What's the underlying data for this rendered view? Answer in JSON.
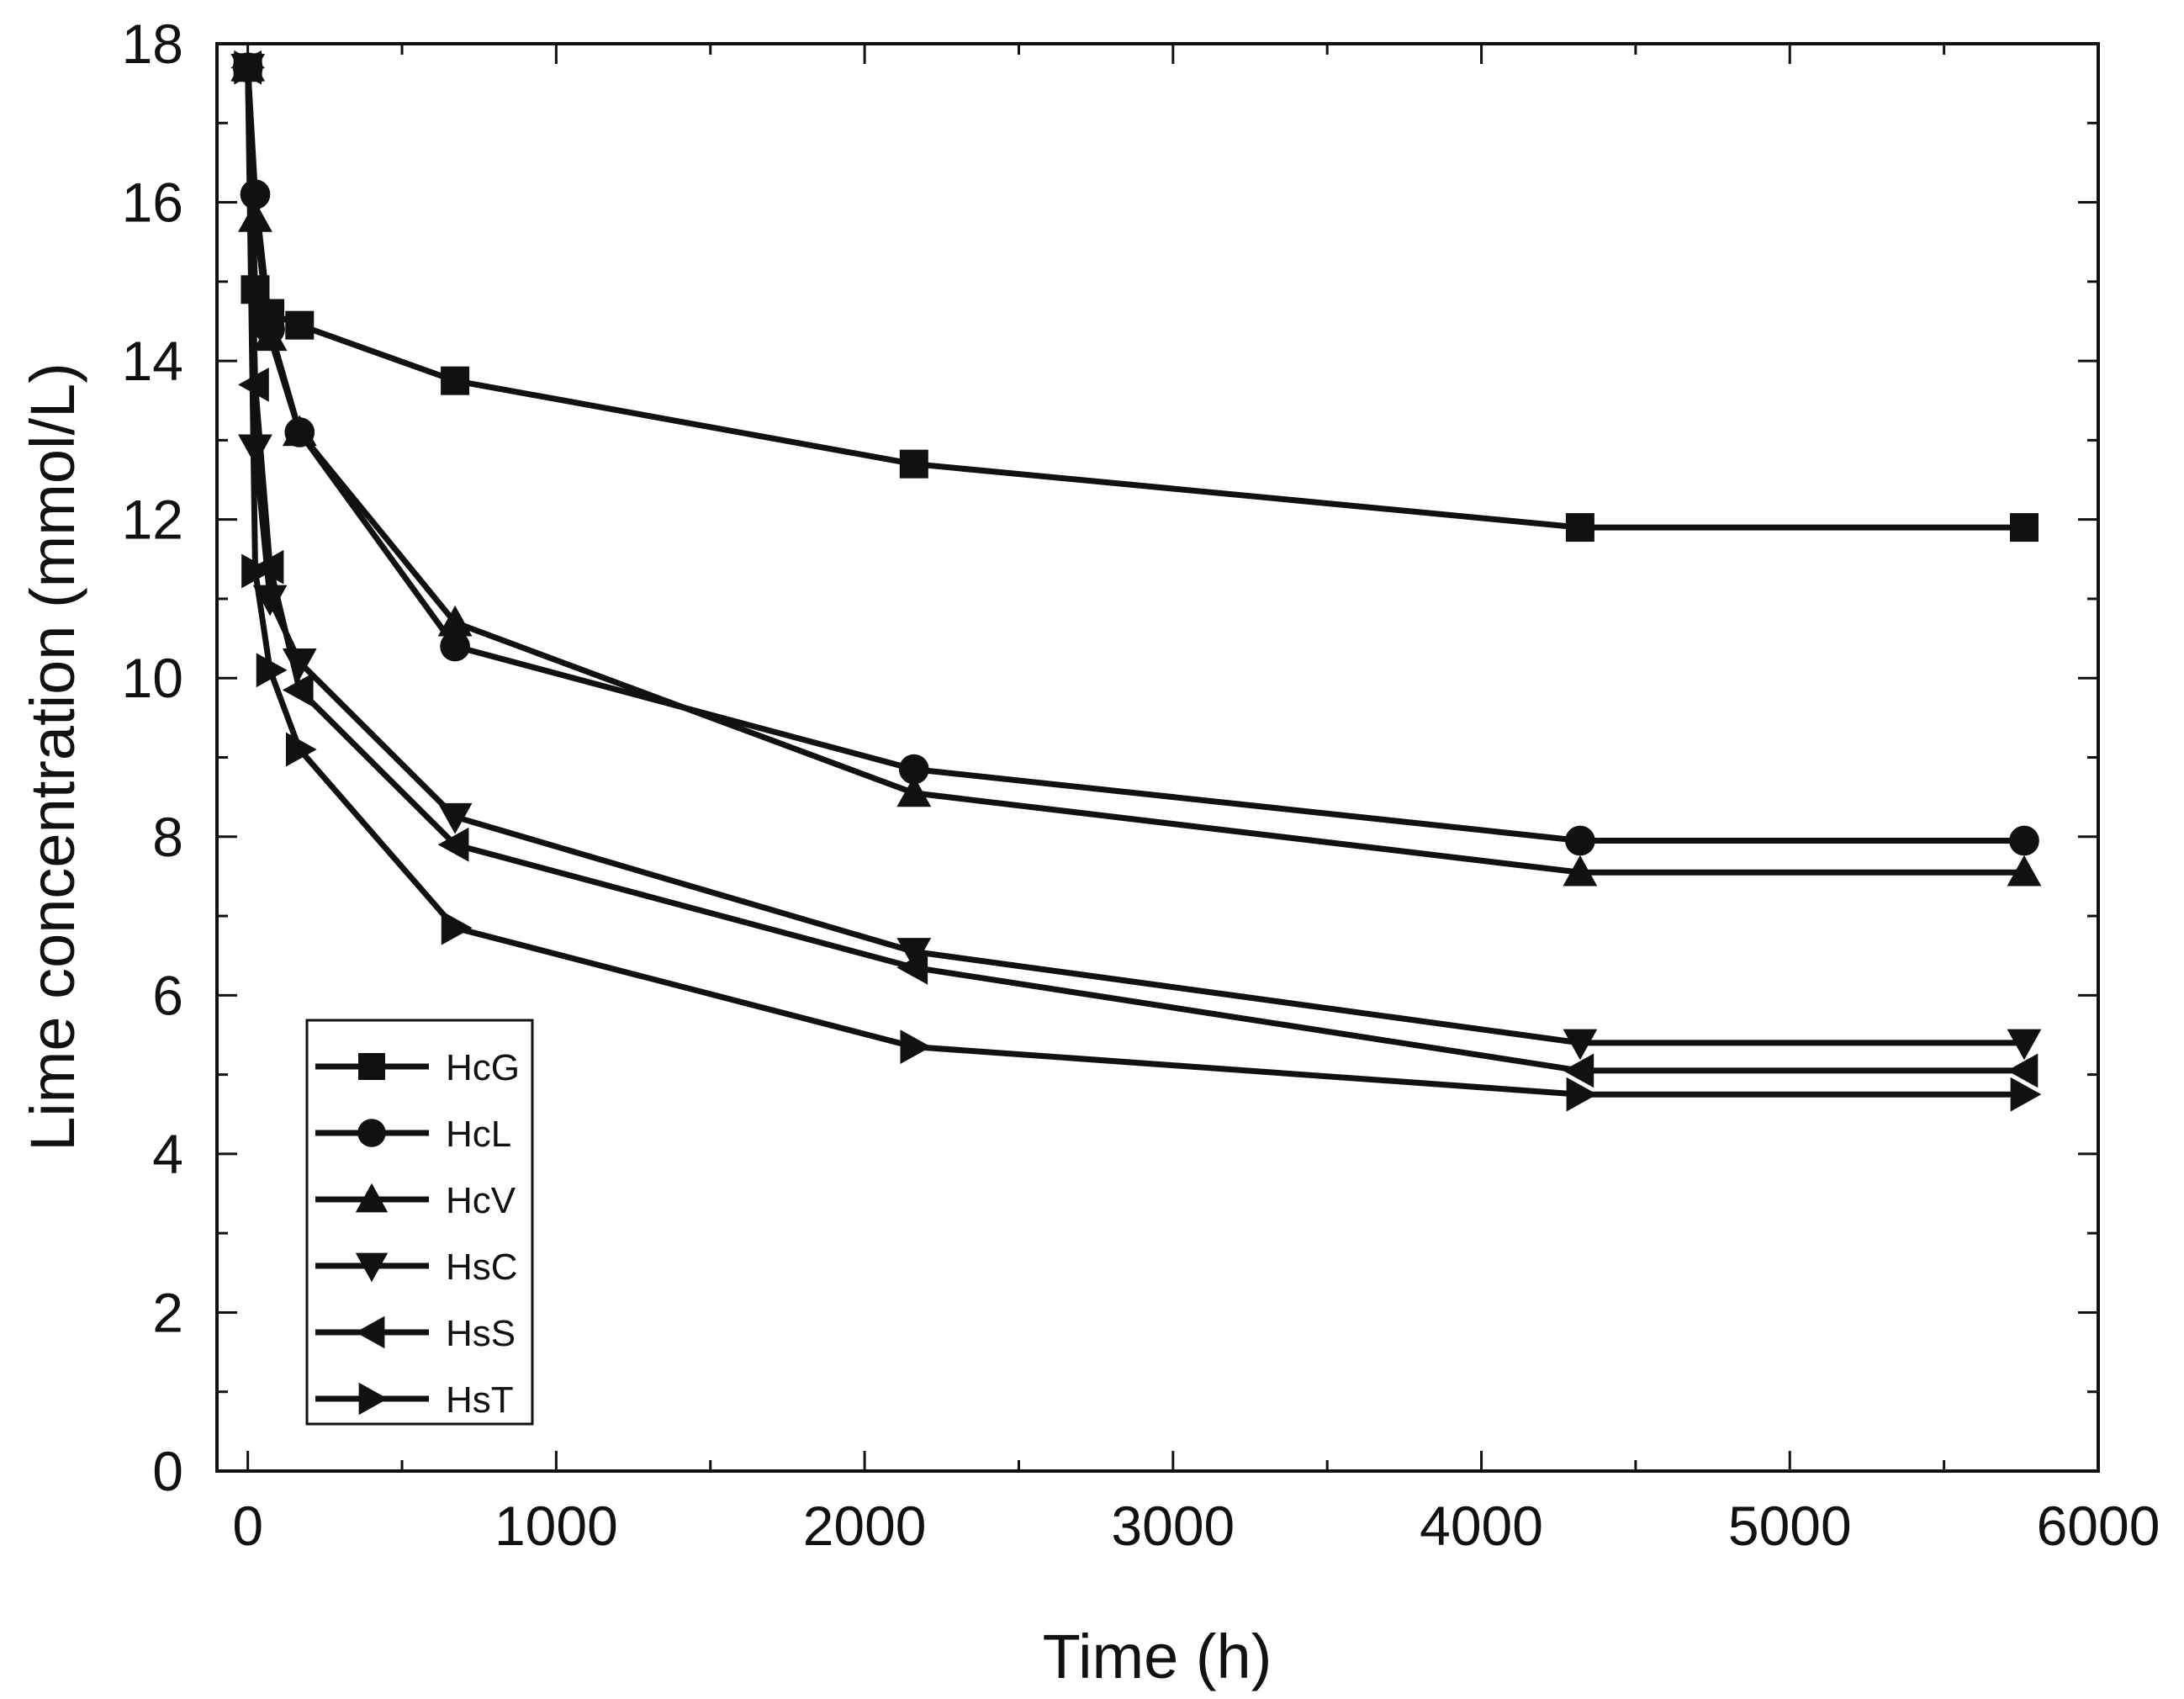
{
  "chart_data": {
    "type": "line",
    "title": "",
    "xlabel": "Time (h)",
    "ylabel": "Lime concentration (mmol/L)",
    "xlim": [
      -100,
      6000
    ],
    "ylim": [
      0,
      18
    ],
    "xticks": [
      0,
      1000,
      2000,
      3000,
      4000,
      5000,
      6000
    ],
    "xtick_labels": [
      "0",
      "1000",
      "2000",
      "3000",
      "4000",
      "5000",
      "6000"
    ],
    "yticks": [
      0,
      2,
      4,
      6,
      8,
      10,
      12,
      14,
      16,
      18
    ],
    "ytick_labels": [
      "0",
      "2",
      "4",
      "6",
      "8",
      "10",
      "12",
      "14",
      "16",
      "18"
    ],
    "legend_position": "bottom-left",
    "grid": false,
    "series": [
      {
        "name": "HcG",
        "marker": "square",
        "x": [
          0,
          24,
          72,
          168,
          672,
          2160,
          4320,
          5760
        ],
        "y": [
          17.7,
          14.9,
          14.6,
          14.45,
          13.75,
          12.7,
          11.9,
          11.9
        ]
      },
      {
        "name": "HcL",
        "marker": "circle",
        "x": [
          0,
          24,
          72,
          168,
          672,
          2160,
          4320,
          5760
        ],
        "y": [
          17.7,
          16.1,
          14.4,
          13.1,
          10.4,
          8.85,
          7.95,
          7.95
        ]
      },
      {
        "name": "HcV",
        "marker": "triangle-up",
        "x": [
          0,
          24,
          72,
          168,
          672,
          2160,
          4320,
          5760
        ],
        "y": [
          17.7,
          15.8,
          14.3,
          13.1,
          10.7,
          8.55,
          7.55,
          7.55
        ]
      },
      {
        "name": "HsC",
        "marker": "triangle-down",
        "x": [
          0,
          24,
          72,
          168,
          672,
          2160,
          4320,
          5760
        ],
        "y": [
          17.7,
          12.9,
          11.0,
          10.2,
          8.25,
          6.55,
          5.4,
          5.4
        ]
      },
      {
        "name": "HsS",
        "marker": "triangle-left",
        "x": [
          0,
          24,
          72,
          168,
          672,
          2160,
          4320,
          5760
        ],
        "y": [
          17.7,
          13.7,
          11.4,
          9.85,
          7.9,
          6.35,
          5.05,
          5.05
        ]
      },
      {
        "name": "HsT",
        "marker": "triangle-right",
        "x": [
          0,
          24,
          72,
          168,
          672,
          2160,
          4320,
          5760
        ],
        "y": [
          17.7,
          11.35,
          10.1,
          9.1,
          6.85,
          5.35,
          4.75,
          4.75
        ]
      }
    ]
  }
}
